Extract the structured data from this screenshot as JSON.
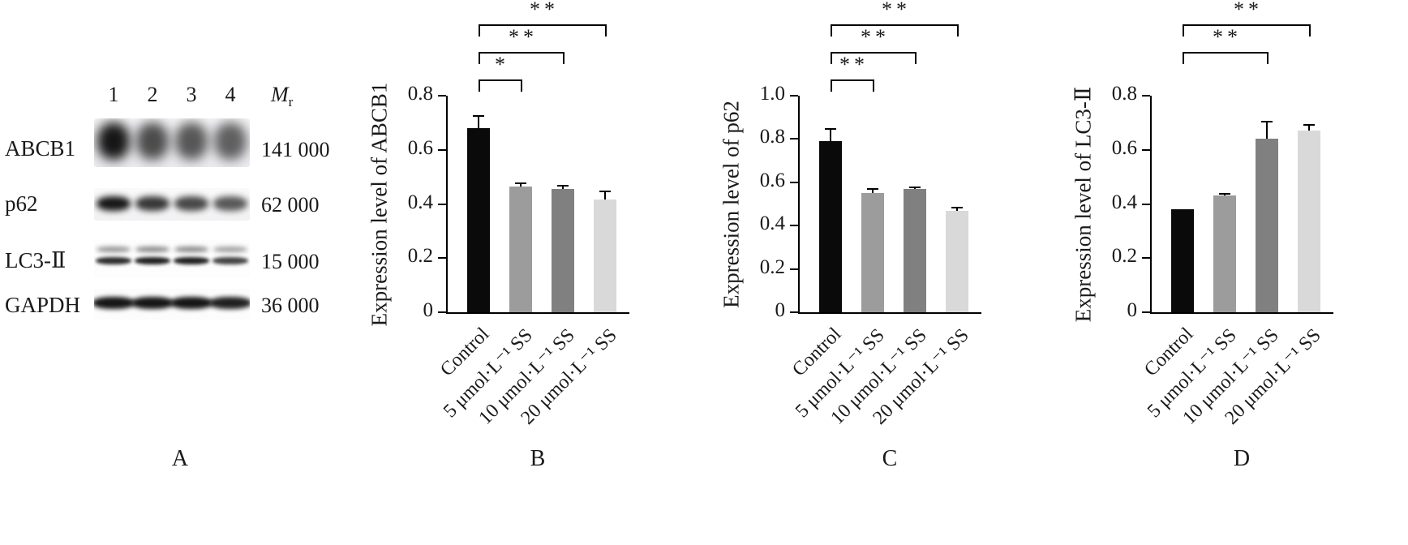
{
  "figure": {
    "panels": {
      "A": {
        "label": "A",
        "lanes": [
          "1",
          "2",
          "3",
          "4"
        ],
        "mr_main": "M",
        "mr_sub": "r",
        "rows": [
          {
            "protein": "ABCB1",
            "weight": "141 000"
          },
          {
            "protein": "p62",
            "weight": "62 000"
          },
          {
            "protein": "LC3-Ⅱ",
            "weight": "15 000"
          },
          {
            "protein": "GAPDH",
            "weight": "36 000"
          }
        ]
      }
    }
  },
  "bar_colors": [
    "#0a0a0a",
    "#9c9c9c",
    "#808080",
    "#d9d9d9"
  ],
  "chart_data": [
    {
      "panel": "B",
      "type": "bar",
      "ylabel": "Expression level of ABCB1",
      "categories": [
        "Control",
        "5 μmol·L⁻¹ SS",
        "10 μmol·L⁻¹ SS",
        "20 μmol·L⁻¹ SS"
      ],
      "values": [
        0.68,
        0.465,
        0.455,
        0.415
      ],
      "errors": [
        0.045,
        0.01,
        0.012,
        0.03
      ],
      "ylim": [
        0,
        0.8
      ],
      "yticks": [
        "0",
        "0.2",
        "0.4",
        "0.6",
        "0.8"
      ],
      "significance": [
        {
          "from": 0,
          "to": 1,
          "stars": "*"
        },
        {
          "from": 0,
          "to": 2,
          "stars": "**"
        },
        {
          "from": 0,
          "to": 3,
          "stars": "**"
        }
      ]
    },
    {
      "panel": "C",
      "type": "bar",
      "ylabel": "Expression level of p62",
      "categories": [
        "Control",
        "5 μmol·L⁻¹ SS",
        "10 μmol·L⁻¹ SS",
        "20 μmol·L⁻¹ SS"
      ],
      "values": [
        0.79,
        0.55,
        0.57,
        0.47
      ],
      "errors": [
        0.055,
        0.02,
        0.008,
        0.015
      ],
      "ylim": [
        0,
        1.0
      ],
      "yticks": [
        "0",
        "0.2",
        "0.4",
        "0.6",
        "0.8",
        "1.0"
      ],
      "significance": [
        {
          "from": 0,
          "to": 1,
          "stars": "**"
        },
        {
          "from": 0,
          "to": 2,
          "stars": "**"
        },
        {
          "from": 0,
          "to": 3,
          "stars": "**"
        }
      ]
    },
    {
      "panel": "D",
      "type": "bar",
      "ylabel": "Expression level of LC3-Ⅱ",
      "categories": [
        "Control",
        "5 μmol·L⁻¹ SS",
        "10 μmol·L⁻¹ SS",
        "20 μmol·L⁻¹ SS"
      ],
      "values": [
        0.38,
        0.43,
        0.64,
        0.67
      ],
      "errors": [
        0,
        0.006,
        0.065,
        0.022
      ],
      "ylim": [
        0,
        0.8
      ],
      "yticks": [
        "0",
        "0.2",
        "0.4",
        "0.6",
        "0.8"
      ],
      "significance": [
        {
          "from": 0,
          "to": 2,
          "stars": "**"
        },
        {
          "from": 0,
          "to": 3,
          "stars": "**"
        }
      ]
    }
  ]
}
